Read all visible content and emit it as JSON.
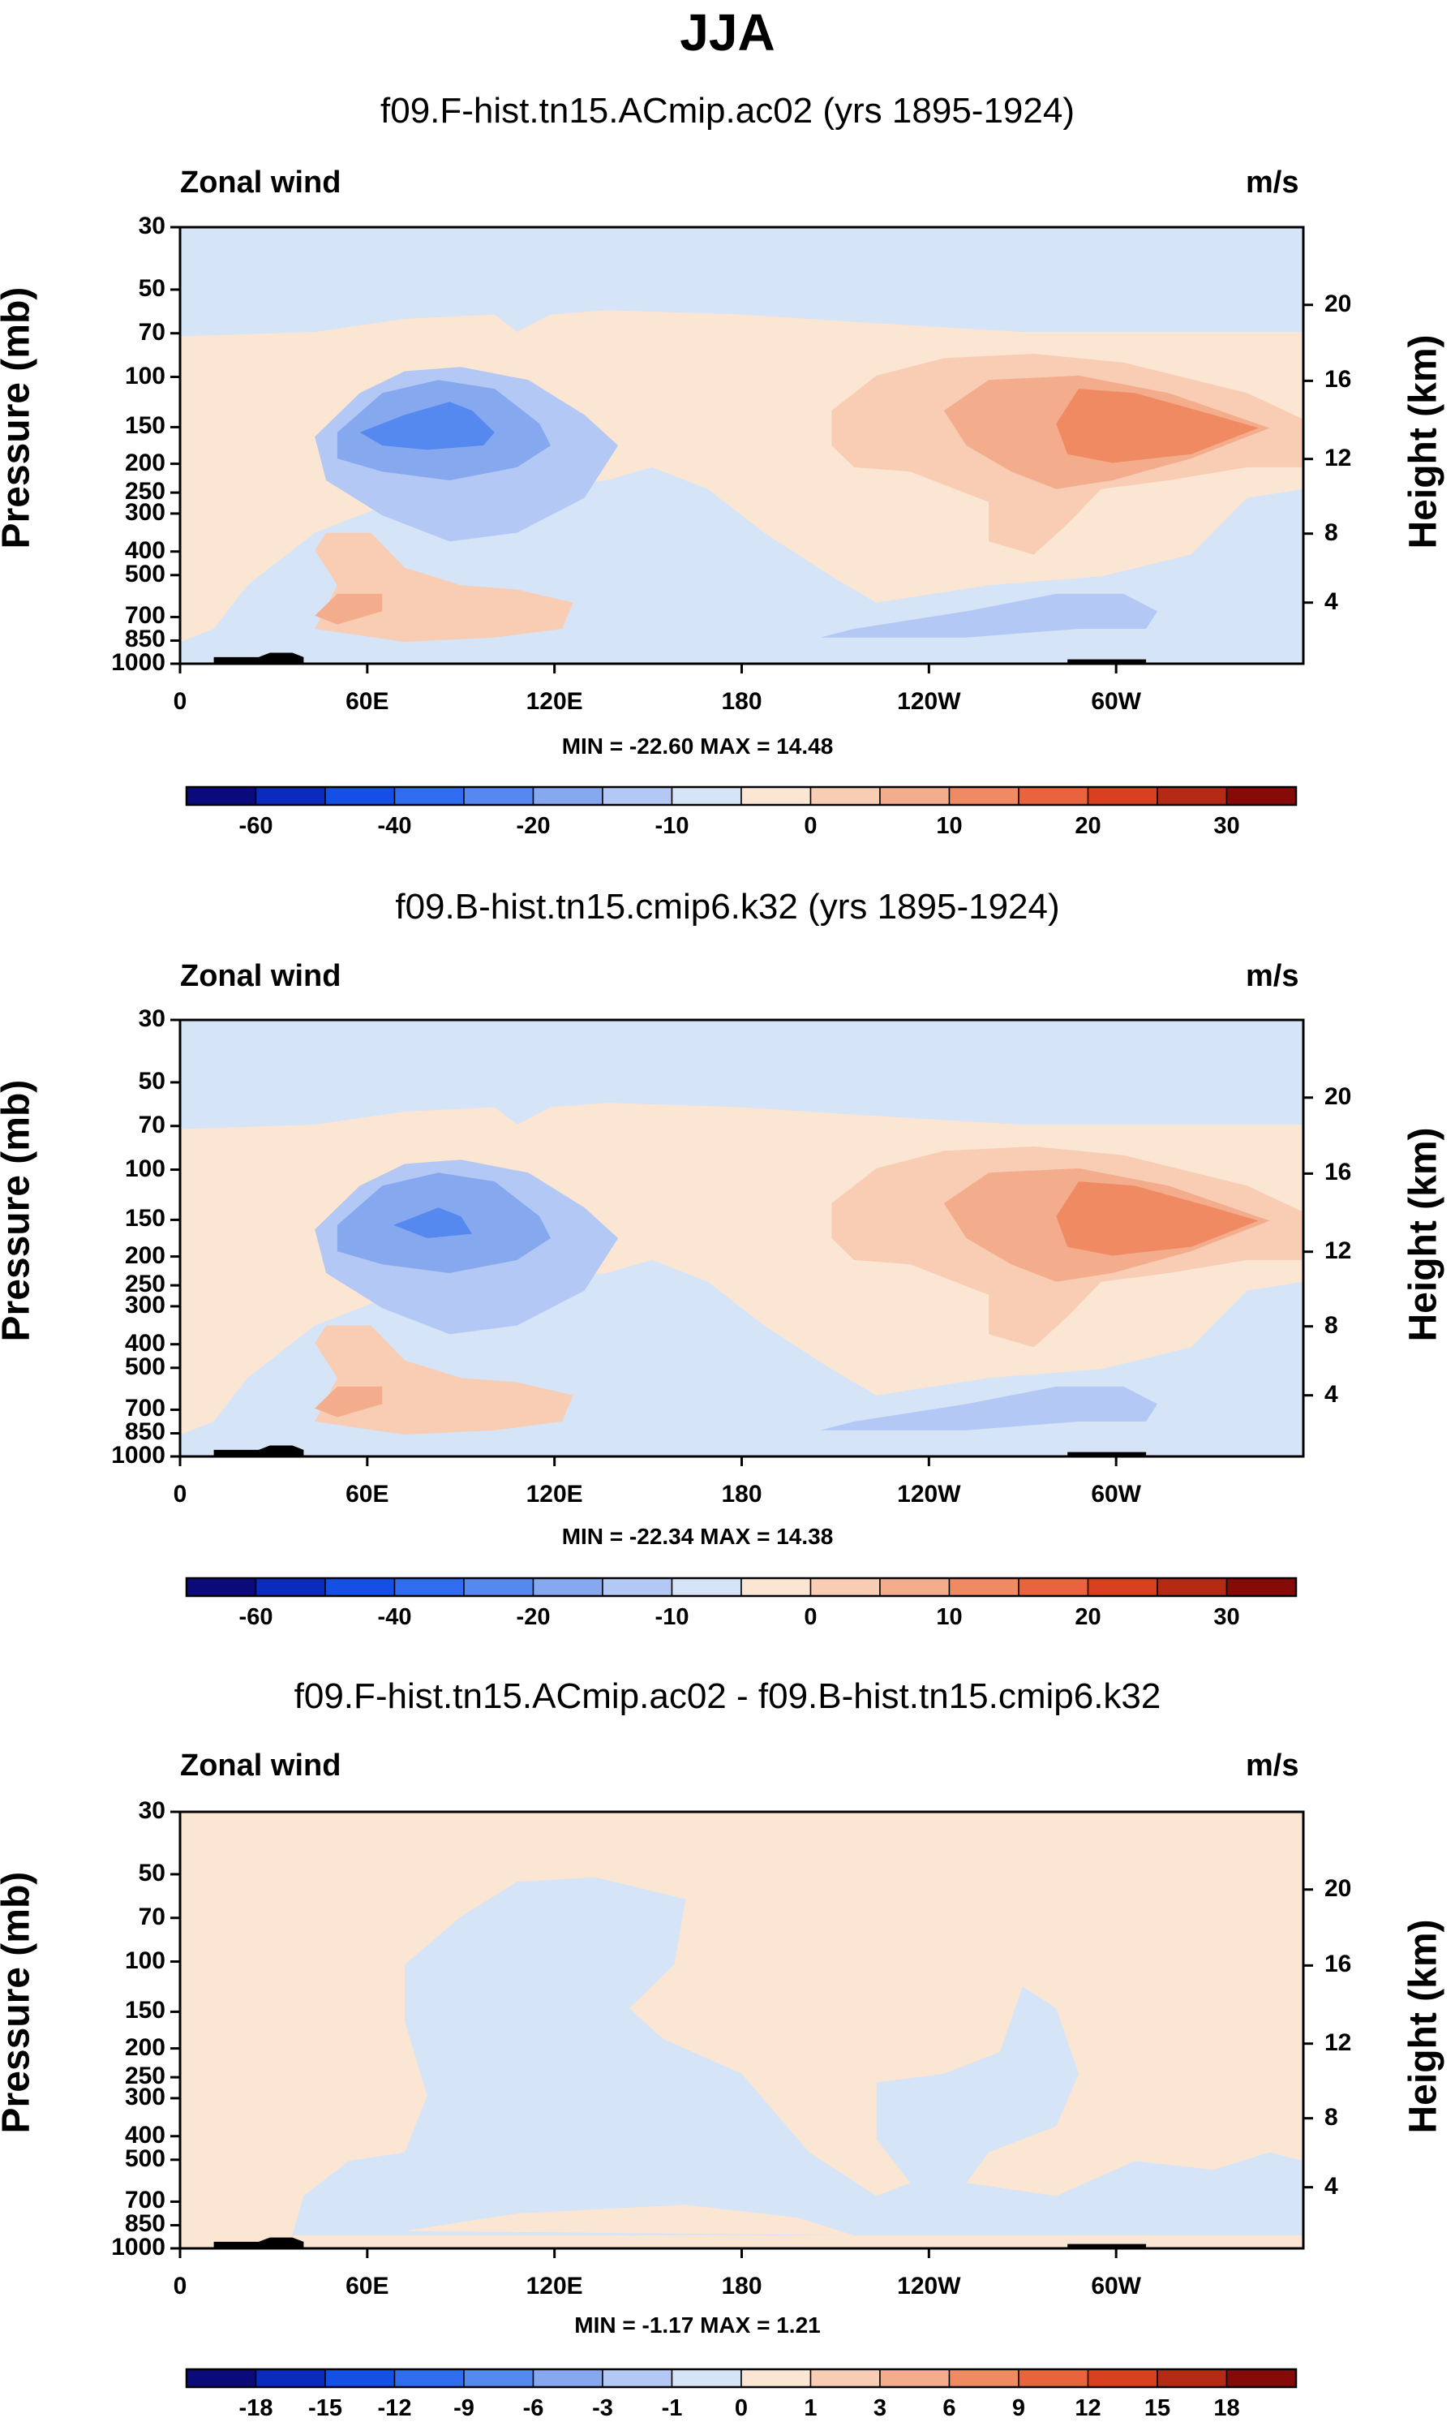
{
  "figure": {
    "title": "JJA"
  },
  "chart_data": [
    {
      "type": "contour",
      "panel": "top",
      "title": "f09.F-hist.tn15.ACmip.ac02 (yrs 1895-1924)",
      "left_label": "Zonal wind",
      "right_label": "m/s",
      "xlabel": "",
      "ylabel": "Pressure (mb)",
      "ylabel_right": "Height (km)",
      "x_ticks": [
        "0",
        "60E",
        "120E",
        "180",
        "120W",
        "60W"
      ],
      "y_ticks": [
        "30",
        "50",
        "70",
        "100",
        "150",
        "200",
        "250",
        "300",
        "400",
        "500",
        "700",
        "850",
        "1000"
      ],
      "y_right_ticks": [
        "20",
        "16",
        "12",
        "8",
        "4"
      ],
      "stats_text": "MIN = -22.60   MAX =  14.48",
      "min": -22.6,
      "max": 14.48,
      "colorbar_labels": [
        "-60",
        "-40",
        "-20",
        "-10",
        "0",
        "10",
        "20",
        "30"
      ]
    },
    {
      "type": "contour",
      "panel": "middle",
      "title": "f09.B-hist.tn15.cmip6.k32 (yrs 1895-1924)",
      "left_label": "Zonal wind",
      "right_label": "m/s",
      "xlabel": "",
      "ylabel": "Pressure (mb)",
      "ylabel_right": "Height (km)",
      "x_ticks": [
        "0",
        "60E",
        "120E",
        "180",
        "120W",
        "60W"
      ],
      "y_ticks": [
        "30",
        "50",
        "70",
        "100",
        "150",
        "200",
        "250",
        "300",
        "400",
        "500",
        "700",
        "850",
        "1000"
      ],
      "y_right_ticks": [
        "20",
        "16",
        "12",
        "8",
        "4"
      ],
      "stats_text": "MIN = -22.34   MAX =  14.38",
      "min": -22.34,
      "max": 14.38,
      "colorbar_labels": [
        "-60",
        "-40",
        "-20",
        "-10",
        "0",
        "10",
        "20",
        "30"
      ]
    },
    {
      "type": "contour",
      "panel": "bottom",
      "title": "f09.F-hist.tn15.ACmip.ac02 - f09.B-hist.tn15.cmip6.k32",
      "left_label": "Zonal wind",
      "right_label": "m/s",
      "xlabel": "",
      "ylabel": "Pressure (mb)",
      "ylabel_right": "Height (km)",
      "x_ticks": [
        "0",
        "60E",
        "120E",
        "180",
        "120W",
        "60W"
      ],
      "y_ticks": [
        "30",
        "50",
        "70",
        "100",
        "150",
        "200",
        "250",
        "300",
        "400",
        "500",
        "700",
        "850",
        "1000"
      ],
      "y_right_ticks": [
        "20",
        "16",
        "12",
        "8",
        "4"
      ],
      "stats_text": "MIN =  -1.17   MAX =   1.21",
      "min": -1.17,
      "max": 1.21,
      "colorbar_labels": [
        "-18",
        "-15",
        "-12",
        "-9",
        "-6",
        "-3",
        "-1",
        "0",
        "1",
        "3",
        "6",
        "9",
        "12",
        "15",
        "18"
      ]
    }
  ],
  "colors": {
    "colorbar": [
      "#0a0a7a",
      "#0b2bbf",
      "#1550e6",
      "#2f6cf0",
      "#5589ef",
      "#86a8ef",
      "#b3c8f4",
      "#d5e4f7",
      "#fbe6d4",
      "#f8cdb4",
      "#f4ad8c",
      "#f08a63",
      "#e9643c",
      "#d9401f",
      "#b42a14",
      "#860a08"
    ],
    "neg1": "#d5e4f7",
    "neg2": "#b3c8f4",
    "neg3": "#86a8ef",
    "neg4": "#5589ef",
    "pos1": "#fbe6d4",
    "pos2": "#f8cdb4",
    "pos3": "#f4ad8c",
    "pos4": "#f08a63"
  }
}
